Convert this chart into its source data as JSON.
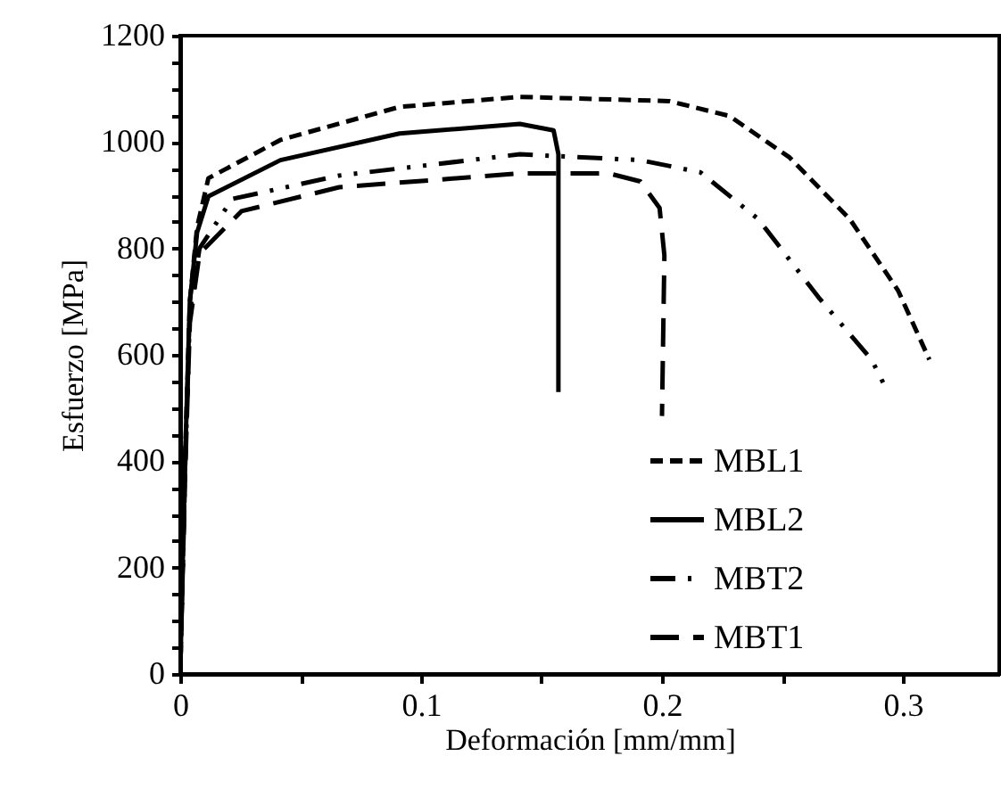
{
  "chart_data": {
    "type": "line",
    "xlabel": "Deformación [mm/mm]",
    "ylabel": "Esfuerzo [MPa]",
    "xlim": [
      0,
      0.34
    ],
    "ylim": [
      0,
      1200
    ],
    "xticks": [
      0,
      {
        "value": 0.05,
        "label": null
      },
      0.1,
      {
        "value": 0.15,
        "label": null
      },
      0.2,
      {
        "value": 0.25,
        "label": null
      },
      0.3
    ],
    "yticks": [
      0,
      {
        "value": 50,
        "label": null
      },
      {
        "value": 100,
        "label": null
      },
      {
        "value": 150,
        "label": null
      },
      200,
      {
        "value": 250,
        "label": null
      },
      {
        "value": 300,
        "label": null
      },
      {
        "value": 350,
        "label": null
      },
      400,
      {
        "value": 450,
        "label": null
      },
      {
        "value": 500,
        "label": null
      },
      {
        "value": 550,
        "label": null
      },
      600,
      {
        "value": 650,
        "label": null
      },
      {
        "value": 700,
        "label": null
      },
      {
        "value": 750,
        "label": null
      },
      800,
      {
        "value": 850,
        "label": null
      },
      {
        "value": 900,
        "label": null
      },
      {
        "value": 950,
        "label": null
      },
      1000,
      {
        "value": 1050,
        "label": null
      },
      {
        "value": 1100,
        "label": null
      },
      {
        "value": 1150,
        "label": null
      },
      1200
    ],
    "grid": false,
    "legend": "bottom right",
    "marker": "none",
    "series": [
      {
        "name": "MBL1",
        "color": "#000000",
        "line_style": "dashed",
        "x": [
          0,
          0.002,
          0.004,
          0.007,
          0.0117,
          0.0416,
          0.091,
          0.141,
          0.203,
          0.228,
          0.253,
          0.278,
          0.298,
          0.311
        ],
        "values": [
          0,
          400,
          700,
          840,
          932,
          1004,
          1066,
          1085,
          1077,
          1049,
          971,
          855,
          721,
          591
        ]
      },
      {
        "name": "MBL2",
        "color": "#000000",
        "line_style": "solid",
        "x": [
          0,
          0.002,
          0.004,
          0.007,
          0.0117,
          0.0416,
          0.091,
          0.141,
          0.155,
          0.157,
          0.157
        ],
        "values": [
          0,
          400,
          700,
          830,
          898,
          966,
          1016,
          1034,
          1022,
          977,
          530
        ]
      },
      {
        "name": "MBT2",
        "color": "#000000",
        "line_style": "dashdotdot",
        "x": [
          0,
          0.002,
          0.004,
          0.008,
          0.0216,
          0.066,
          0.141,
          0.191,
          0.216,
          0.24,
          0.265,
          0.287,
          0.292
        ],
        "values": [
          0,
          380,
          680,
          800,
          893,
          937,
          977,
          966,
          943,
          855,
          708,
          591,
          546
        ]
      },
      {
        "name": "MBT1",
        "color": "#000000",
        "line_style": "longdash",
        "x": [
          0,
          0.002,
          0.004,
          0.008,
          0.0254,
          0.066,
          0.141,
          0.178,
          0.191,
          0.199,
          0.201,
          0.2
        ],
        "values": [
          0,
          370,
          660,
          790,
          870,
          915,
          941,
          941,
          926,
          876,
          787,
          485
        ]
      }
    ]
  }
}
